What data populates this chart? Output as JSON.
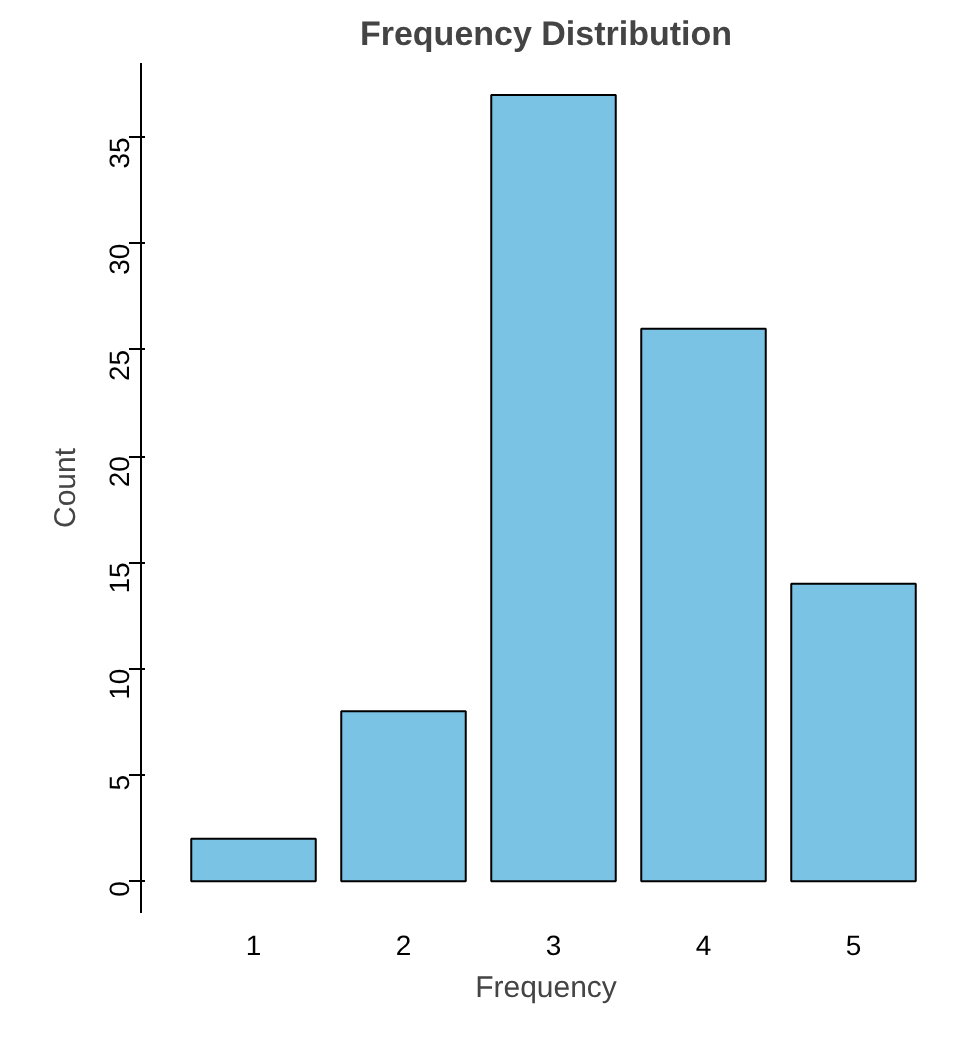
{
  "chart_data": {
    "type": "bar",
    "title": "Frequency Distribution",
    "xlabel": "Frequency",
    "ylabel": "Count",
    "categories": [
      "1",
      "2",
      "3",
      "4",
      "5"
    ],
    "values": [
      2,
      8,
      37,
      26,
      14
    ],
    "color": "#7ac3e5",
    "ylim": [
      -1.5,
      38.5
    ],
    "yticks": [
      0,
      5,
      10,
      15,
      20,
      25,
      30,
      35
    ],
    "grid": false
  }
}
